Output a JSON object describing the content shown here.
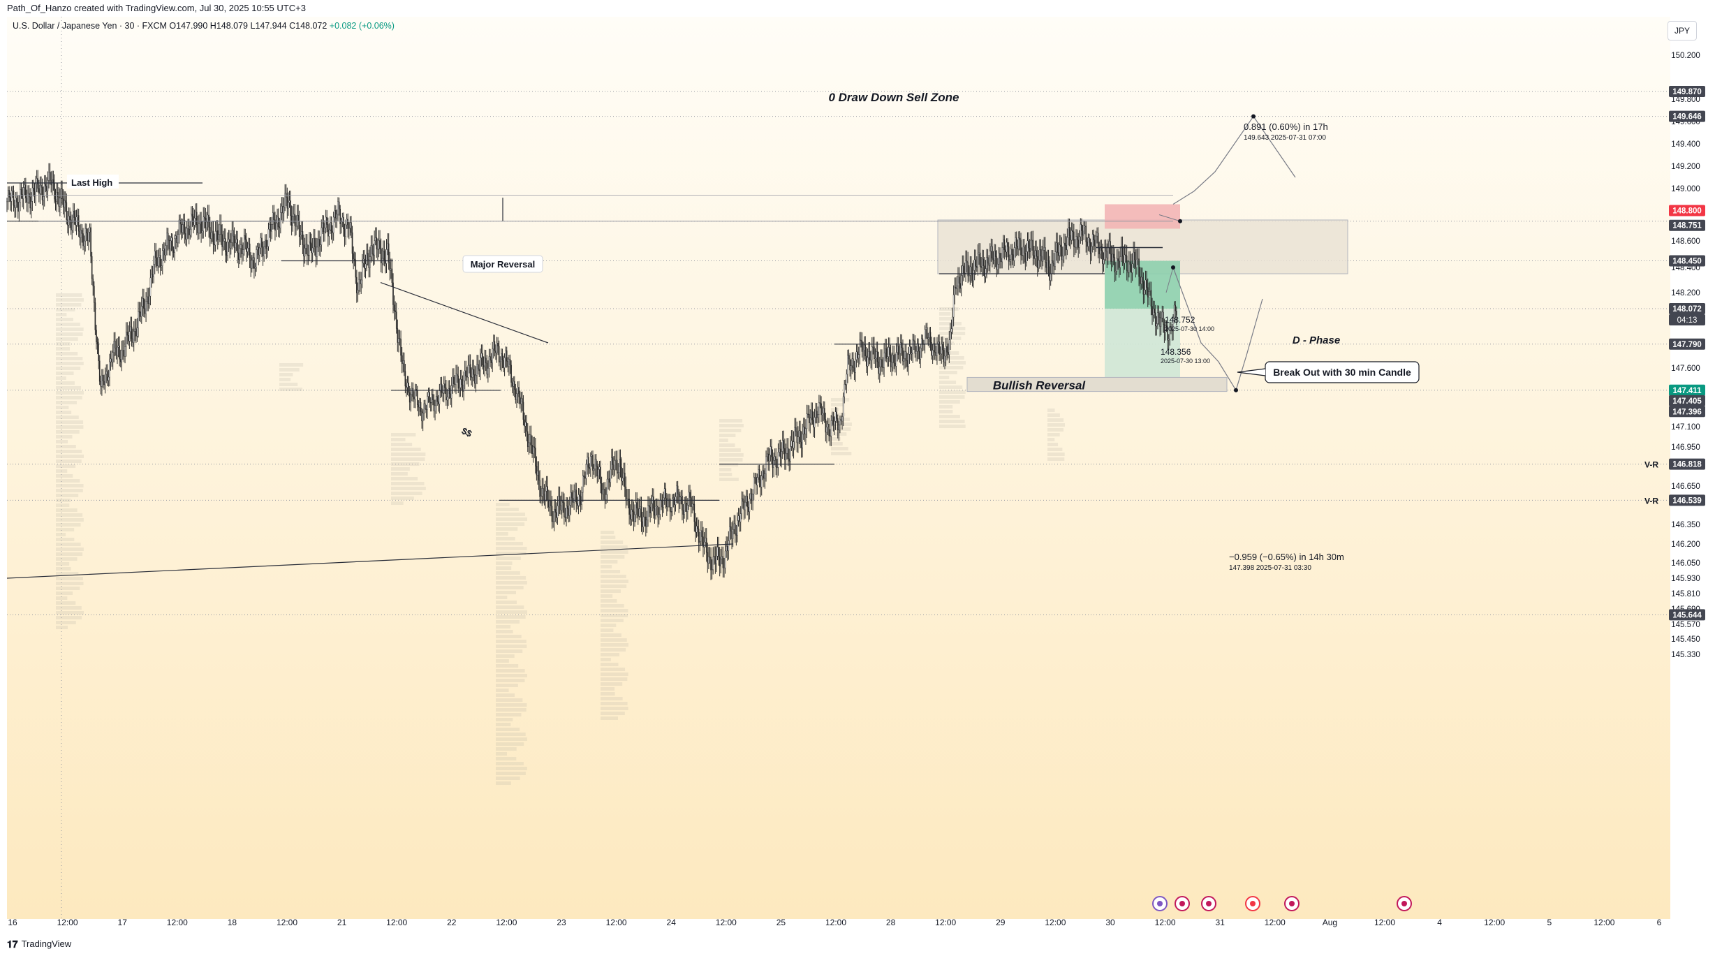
{
  "header": {
    "credit": "Path_Of_Hanzo created with TradingView.com, Jul 30, 2025 10:55 UTC+3",
    "symbol": "U.S. Dollar / Japanese Yen · 30 · FXCM",
    "ohlc": "O147.990 H148.079 L147.944 C148.072",
    "change": "+0.082 (+0.06%)"
  },
  "currency_button": "JPY",
  "footer": {
    "brand": "TradingView"
  },
  "colors": {
    "bg_top": "#fffdf7",
    "bg_bottom": "#fde9bf",
    "candle": "#2a2a2a",
    "stop_zone": "#f2b1b3",
    "target_zone": "#cfe7d6",
    "target_zone_dark": "#8dcfae",
    "sell_zone": "#e8e1d3",
    "price_red": "#f23645",
    "price_green": "#089981",
    "price_dark": "#434651",
    "grid_dotted": "#9598a1"
  },
  "chart_data": {
    "type": "candlestick",
    "symbol": "USDJPY",
    "timeframe": "30",
    "ylim": [
      145.3,
      150.3
    ],
    "y_ticks": [
      150.2,
      149.8,
      149.6,
      149.4,
      149.2,
      149.0,
      148.6,
      148.4,
      148.2,
      147.6,
      147.1,
      146.95,
      146.65,
      146.35,
      146.2,
      146.05,
      145.93,
      145.81,
      145.69,
      145.57,
      145.45,
      145.33
    ],
    "x_ticks": [
      "16",
      "12:00",
      "17",
      "12:00",
      "18",
      "12:00",
      "21",
      "12:00",
      "22",
      "12:00",
      "23",
      "12:00",
      "24",
      "12:00",
      "25",
      "12:00",
      "28",
      "12:00",
      "29",
      "12:00",
      "30",
      "12:00",
      "31",
      "12:00",
      "Aug",
      "12:00",
      "4",
      "12:00",
      "5",
      "12:00",
      "6"
    ],
    "price_path": [
      [
        0,
        148.9
      ],
      [
        20,
        148.95
      ],
      [
        40,
        149.05
      ],
      [
        55,
        148.8
      ],
      [
        75,
        148.6
      ],
      [
        85,
        147.4
      ],
      [
        95,
        147.7
      ],
      [
        105,
        147.75
      ],
      [
        115,
        147.9
      ],
      [
        125,
        148.1
      ],
      [
        135,
        148.45
      ],
      [
        145,
        148.55
      ],
      [
        160,
        148.7
      ],
      [
        175,
        148.75
      ],
      [
        195,
        148.6
      ],
      [
        215,
        148.55
      ],
      [
        225,
        148.45
      ],
      [
        240,
        148.7
      ],
      [
        255,
        148.9
      ],
      [
        265,
        148.65
      ],
      [
        275,
        148.5
      ],
      [
        285,
        148.65
      ],
      [
        300,
        148.8
      ],
      [
        310,
        148.7
      ],
      [
        318,
        148.25
      ],
      [
        330,
        148.55
      ],
      [
        345,
        148.5
      ],
      [
        360,
        147.5
      ],
      [
        375,
        147.25
      ],
      [
        390,
        147.35
      ],
      [
        405,
        147.45
      ],
      [
        420,
        147.55
      ],
      [
        435,
        147.65
      ],
      [
        445,
        147.75
      ],
      [
        455,
        147.6
      ],
      [
        465,
        147.3
      ],
      [
        475,
        146.95
      ],
      [
        485,
        146.6
      ],
      [
        495,
        146.45
      ],
      [
        510,
        146.5
      ],
      [
        520,
        146.6
      ],
      [
        530,
        146.9
      ],
      [
        540,
        146.6
      ],
      [
        550,
        146.8
      ],
      [
        555,
        146.85
      ],
      [
        562,
        146.5
      ],
      [
        575,
        146.4
      ],
      [
        590,
        146.5
      ],
      [
        605,
        146.55
      ],
      [
        620,
        146.5
      ],
      [
        630,
        146.2
      ],
      [
        640,
        146.05
      ],
      [
        650,
        146.1
      ],
      [
        660,
        146.35
      ],
      [
        675,
        146.6
      ],
      [
        690,
        146.85
      ],
      [
        705,
        146.9
      ],
      [
        720,
        147.05
      ],
      [
        735,
        147.25
      ],
      [
        745,
        147.1
      ],
      [
        755,
        147.15
      ],
      [
        762,
        147.6
      ],
      [
        775,
        147.75
      ],
      [
        790,
        147.65
      ],
      [
        805,
        147.7
      ],
      [
        820,
        147.72
      ],
      [
        835,
        147.85
      ],
      [
        845,
        147.7
      ],
      [
        855,
        147.8
      ],
      [
        860,
        148.3
      ],
      [
        875,
        148.4
      ],
      [
        890,
        148.45
      ],
      [
        905,
        148.52
      ],
      [
        920,
        148.55
      ],
      [
        935,
        148.5
      ],
      [
        945,
        148.4
      ],
      [
        960,
        148.6
      ],
      [
        975,
        148.65
      ],
      [
        990,
        148.55
      ],
      [
        1005,
        148.45
      ],
      [
        1015,
        148.45
      ],
      [
        1025,
        148.4
      ],
      [
        1035,
        148.15
      ],
      [
        1045,
        147.95
      ],
      [
        1055,
        147.9
      ],
      [
        1060,
        148.05
      ]
    ],
    "horizontal_levels": [
      {
        "price": 149.87,
        "label": "149.870"
      },
      {
        "price": 149.646,
        "label": "149.646"
      },
      {
        "price": 148.751,
        "label": "148.751"
      },
      {
        "price": 148.45,
        "label": "148.450"
      },
      {
        "price": 148.072,
        "label": "148.072"
      },
      {
        "price": 147.79,
        "label": "147.790"
      },
      {
        "price": 147.411,
        "label": "147.411"
      },
      {
        "price": 146.818,
        "label": "146.818"
      },
      {
        "price": 146.539,
        "label": "146.539"
      },
      {
        "price": 145.644,
        "label": "145.644"
      }
    ],
    "price_labels": [
      {
        "price": 149.87,
        "text": "149.870",
        "style": "dark"
      },
      {
        "price": 149.646,
        "text": "149.646",
        "style": "dark"
      },
      {
        "price": 148.8,
        "text": "148.800",
        "style": "red"
      },
      {
        "price": 148.751,
        "text": "148.751",
        "style": "dark"
      },
      {
        "price": 148.45,
        "text": "148.450",
        "style": "dark"
      },
      {
        "price": 148.072,
        "text": "148.072",
        "style": "dark"
      },
      {
        "price": 147.79,
        "text": "147.790",
        "style": "dark"
      },
      {
        "price": 147.411,
        "text": "147.411",
        "style": "green"
      },
      {
        "price": 147.405,
        "text": "147.405",
        "style": "dark"
      },
      {
        "price": 147.396,
        "text": "147.396",
        "style": "dark"
      },
      {
        "price": 146.818,
        "text": "146.818",
        "style": "dark"
      },
      {
        "price": 146.539,
        "text": "146.539",
        "style": "dark"
      },
      {
        "price": 145.644,
        "text": "145.644",
        "style": "dark"
      }
    ],
    "countdown": "04:13",
    "vr_label": "V-R",
    "annotations": {
      "sell_zone_title": "0 Draw Down Sell Zone",
      "last_high": "Last High",
      "major_reversal": "Major Reversal",
      "ss": "$$",
      "d_phase": "D - Phase",
      "breakout": "Break Out with 30 min Candle",
      "bullish_reversal": "Bullish Reversal",
      "upper_measure": "0.891 (0.60%) in 17h",
      "upper_measure_sub": "149.643      2025-07-31  07:00",
      "lower_measure": "−0.959 (−0.65%) in 14h 30m",
      "lower_measure_sub": "147.398      2025-07-31  03:30",
      "entry_price": "148.752",
      "entry_time": "2025-07-30 14:00",
      "mid_price": "148.356",
      "mid_time": "2025-07-30 13:00"
    }
  }
}
